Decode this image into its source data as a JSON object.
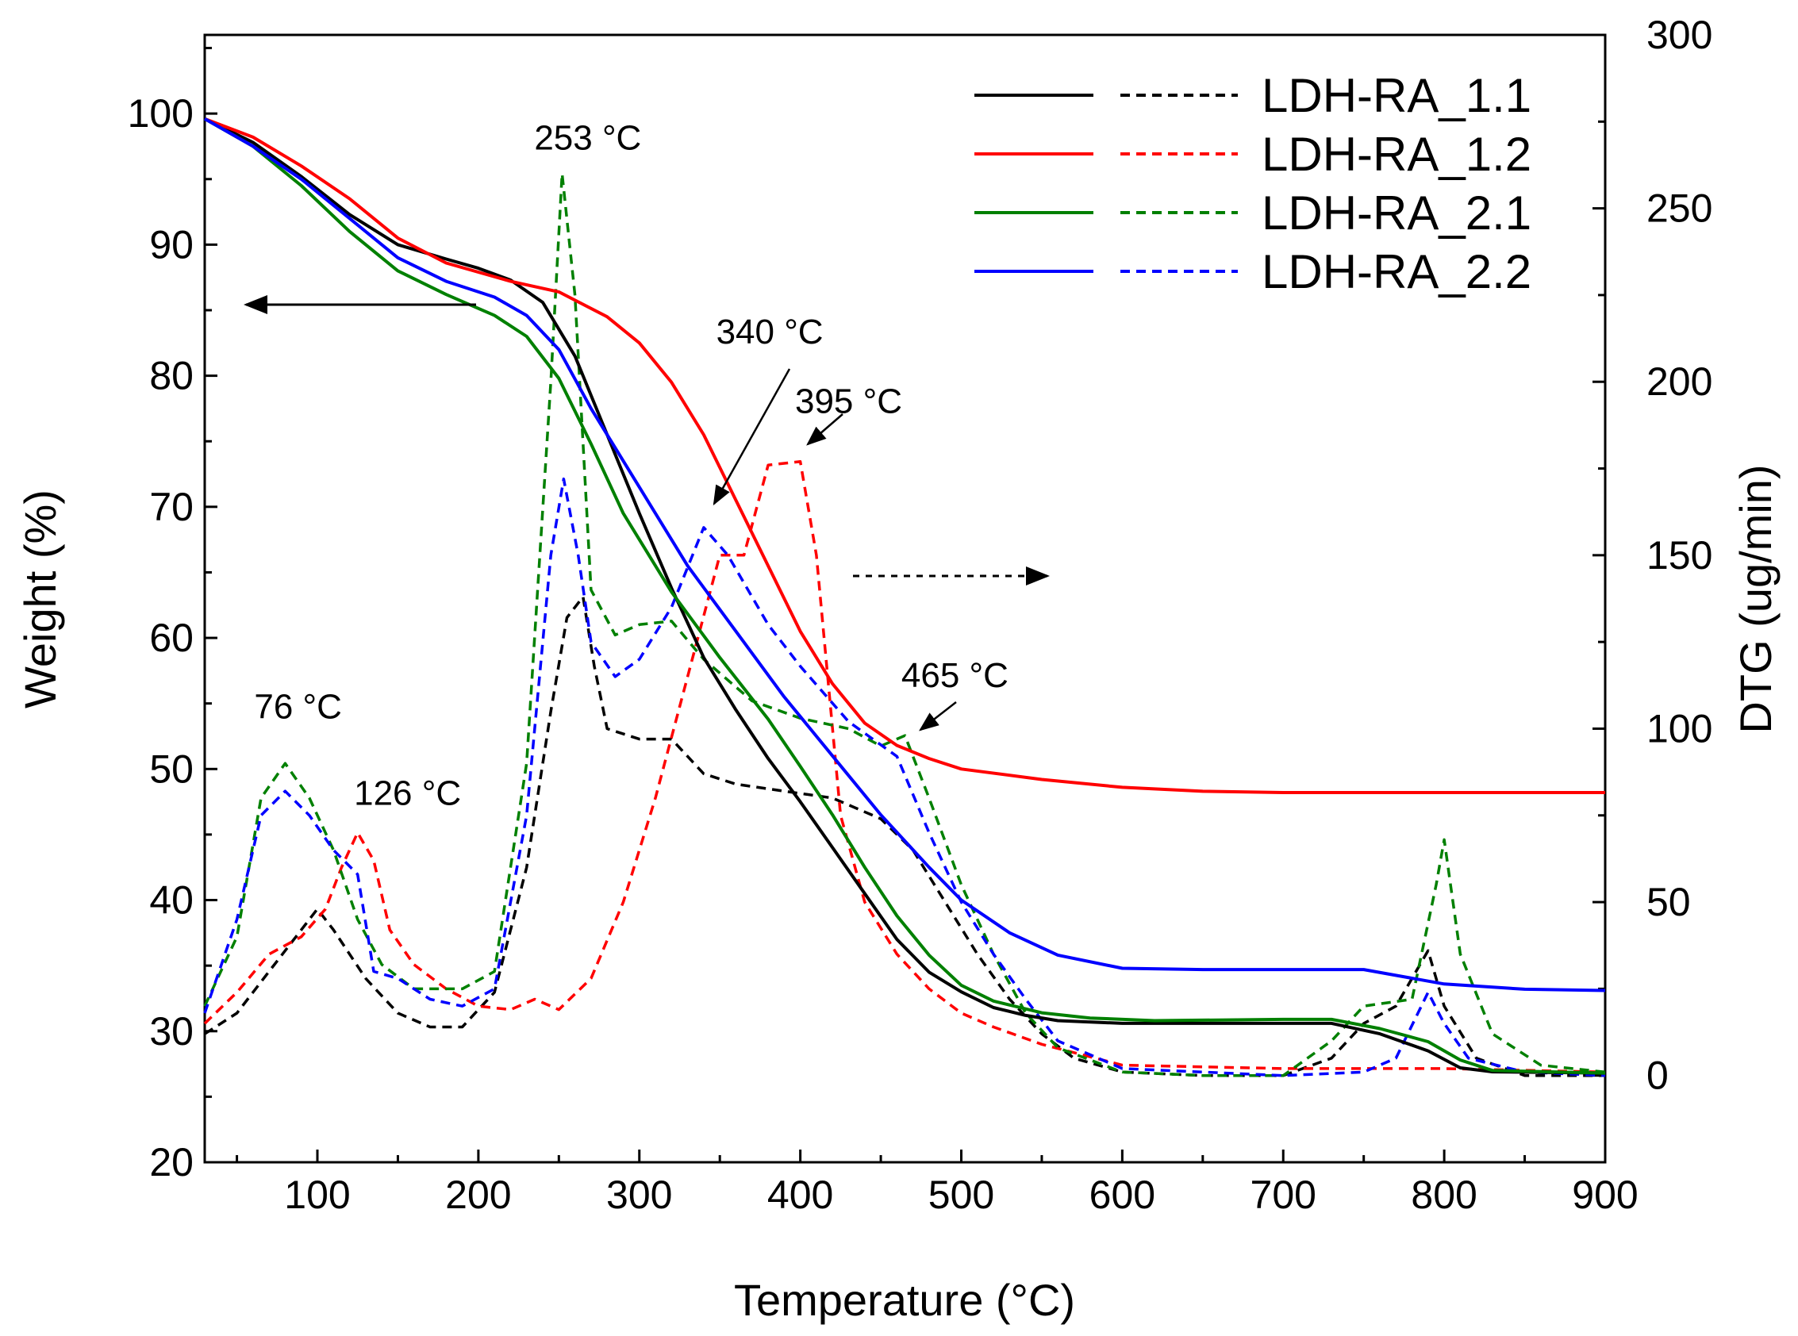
{
  "chart_data": {
    "type": "line",
    "xlabel": "Temperature (°C)",
    "ylabel_left": "Weight (%)",
    "ylabel_right": "DTG (ug/min)",
    "xlim": [
      30,
      900
    ],
    "ylim_left": [
      20,
      106
    ],
    "ylim_right": [
      -25,
      300
    ],
    "x_ticks": [
      100,
      200,
      300,
      400,
      500,
      600,
      700,
      800,
      900
    ],
    "y_left_ticks": [
      20,
      30,
      40,
      50,
      60,
      70,
      80,
      90,
      100
    ],
    "y_right_ticks": [
      0,
      50,
      100,
      150,
      200,
      250,
      300
    ],
    "grid": false,
    "legend_position": "top-right",
    "series": [
      {
        "name": "LDH-RA_1.1",
        "color": "#000000",
        "weight": [
          [
            30,
            99.6
          ],
          [
            60,
            97.8
          ],
          [
            90,
            95.2
          ],
          [
            120,
            92.3
          ],
          [
            150,
            90.0
          ],
          [
            180,
            88.9
          ],
          [
            200,
            88.2
          ],
          [
            220,
            87.3
          ],
          [
            240,
            85.6
          ],
          [
            260,
            81.5
          ],
          [
            280,
            75.5
          ],
          [
            300,
            69.5
          ],
          [
            320,
            63.8
          ],
          [
            340,
            58.5
          ],
          [
            360,
            54.5
          ],
          [
            380,
            50.8
          ],
          [
            400,
            47.5
          ],
          [
            420,
            44.0
          ],
          [
            440,
            40.5
          ],
          [
            460,
            37.0
          ],
          [
            480,
            34.5
          ],
          [
            500,
            33.0
          ],
          [
            520,
            31.8
          ],
          [
            540,
            31.2
          ],
          [
            560,
            30.8
          ],
          [
            600,
            30.6
          ],
          [
            650,
            30.6
          ],
          [
            700,
            30.6
          ],
          [
            730,
            30.6
          ],
          [
            760,
            29.8
          ],
          [
            790,
            28.5
          ],
          [
            810,
            27.2
          ],
          [
            830,
            26.9
          ],
          [
            900,
            26.8
          ]
        ],
        "dtg": [
          [
            30,
            12
          ],
          [
            50,
            18
          ],
          [
            70,
            30
          ],
          [
            90,
            42
          ],
          [
            100,
            48
          ],
          [
            110,
            42
          ],
          [
            130,
            28
          ],
          [
            150,
            18
          ],
          [
            170,
            14
          ],
          [
            190,
            14
          ],
          [
            210,
            24
          ],
          [
            230,
            60
          ],
          [
            245,
            105
          ],
          [
            255,
            132
          ],
          [
            265,
            138
          ],
          [
            272,
            118
          ],
          [
            280,
            100
          ],
          [
            300,
            97
          ],
          [
            320,
            97
          ],
          [
            340,
            87
          ],
          [
            360,
            84
          ],
          [
            390,
            82
          ],
          [
            420,
            80
          ],
          [
            450,
            74
          ],
          [
            470,
            65
          ],
          [
            490,
            50
          ],
          [
            510,
            35
          ],
          [
            530,
            22
          ],
          [
            550,
            12
          ],
          [
            570,
            5
          ],
          [
            600,
            1
          ],
          [
            650,
            0
          ],
          [
            700,
            0
          ],
          [
            730,
            5
          ],
          [
            750,
            15
          ],
          [
            770,
            20
          ],
          [
            790,
            36
          ],
          [
            800,
            20
          ],
          [
            820,
            5
          ],
          [
            850,
            0
          ],
          [
            900,
            0
          ]
        ]
      },
      {
        "name": "LDH-RA_1.2",
        "color": "#ff0000",
        "weight": [
          [
            30,
            99.6
          ],
          [
            60,
            98.2
          ],
          [
            90,
            96.0
          ],
          [
            120,
            93.5
          ],
          [
            150,
            90.5
          ],
          [
            180,
            88.6
          ],
          [
            220,
            87.2
          ],
          [
            250,
            86.4
          ],
          [
            280,
            84.5
          ],
          [
            300,
            82.5
          ],
          [
            320,
            79.5
          ],
          [
            340,
            75.5
          ],
          [
            360,
            70.5
          ],
          [
            380,
            65.5
          ],
          [
            400,
            60.5
          ],
          [
            420,
            56.5
          ],
          [
            440,
            53.5
          ],
          [
            460,
            51.8
          ],
          [
            480,
            50.8
          ],
          [
            500,
            50.0
          ],
          [
            550,
            49.2
          ],
          [
            600,
            48.6
          ],
          [
            650,
            48.3
          ],
          [
            700,
            48.2
          ],
          [
            800,
            48.2
          ],
          [
            900,
            48.2
          ]
        ],
        "dtg": [
          [
            30,
            15
          ],
          [
            50,
            24
          ],
          [
            70,
            35
          ],
          [
            90,
            40
          ],
          [
            105,
            48
          ],
          [
            115,
            60
          ],
          [
            125,
            70
          ],
          [
            135,
            62
          ],
          [
            145,
            42
          ],
          [
            160,
            32
          ],
          [
            180,
            25
          ],
          [
            200,
            20
          ],
          [
            220,
            19
          ],
          [
            235,
            22
          ],
          [
            250,
            19
          ],
          [
            270,
            28
          ],
          [
            290,
            50
          ],
          [
            310,
            80
          ],
          [
            330,
            115
          ],
          [
            350,
            150
          ],
          [
            365,
            150
          ],
          [
            380,
            176
          ],
          [
            400,
            177
          ],
          [
            410,
            150
          ],
          [
            425,
            75
          ],
          [
            440,
            50
          ],
          [
            460,
            35
          ],
          [
            480,
            25
          ],
          [
            500,
            18
          ],
          [
            520,
            14
          ],
          [
            550,
            9
          ],
          [
            600,
            3
          ],
          [
            700,
            2
          ],
          [
            800,
            2
          ],
          [
            900,
            1
          ]
        ]
      },
      {
        "name": "LDH-RA_2.1",
        "color": "#008000",
        "weight": [
          [
            30,
            99.6
          ],
          [
            60,
            97.5
          ],
          [
            90,
            94.5
          ],
          [
            120,
            91.0
          ],
          [
            150,
            88.0
          ],
          [
            180,
            86.2
          ],
          [
            210,
            84.6
          ],
          [
            230,
            83.0
          ],
          [
            250,
            79.8
          ],
          [
            270,
            74.8
          ],
          [
            290,
            69.5
          ],
          [
            320,
            63.5
          ],
          [
            350,
            58.5
          ],
          [
            380,
            53.8
          ],
          [
            400,
            50.2
          ],
          [
            420,
            46.5
          ],
          [
            440,
            42.5
          ],
          [
            460,
            38.8
          ],
          [
            480,
            35.8
          ],
          [
            500,
            33.5
          ],
          [
            520,
            32.3
          ],
          [
            550,
            31.4
          ],
          [
            580,
            31.0
          ],
          [
            620,
            30.8
          ],
          [
            700,
            30.9
          ],
          [
            730,
            30.9
          ],
          [
            760,
            30.2
          ],
          [
            790,
            29.2
          ],
          [
            810,
            27.8
          ],
          [
            830,
            27.0
          ],
          [
            900,
            26.8
          ]
        ],
        "dtg": [
          [
            30,
            20
          ],
          [
            50,
            40
          ],
          [
            65,
            80
          ],
          [
            80,
            90
          ],
          [
            95,
            80
          ],
          [
            110,
            65
          ],
          [
            125,
            45
          ],
          [
            140,
            32
          ],
          [
            160,
            25
          ],
          [
            190,
            25
          ],
          [
            210,
            30
          ],
          [
            230,
            90
          ],
          [
            245,
            200
          ],
          [
            252,
            260
          ],
          [
            260,
            225
          ],
          [
            270,
            140
          ],
          [
            285,
            127
          ],
          [
            300,
            130
          ],
          [
            320,
            131
          ],
          [
            340,
            120
          ],
          [
            370,
            108
          ],
          [
            400,
            103
          ],
          [
            430,
            100
          ],
          [
            450,
            95
          ],
          [
            465,
            98
          ],
          [
            480,
            80
          ],
          [
            500,
            55
          ],
          [
            520,
            35
          ],
          [
            540,
            18
          ],
          [
            560,
            8
          ],
          [
            600,
            1
          ],
          [
            650,
            0
          ],
          [
            700,
            0
          ],
          [
            730,
            10
          ],
          [
            750,
            20
          ],
          [
            780,
            22
          ],
          [
            795,
            55
          ],
          [
            800,
            68
          ],
          [
            810,
            35
          ],
          [
            830,
            12
          ],
          [
            860,
            3
          ],
          [
            900,
            1
          ]
        ]
      },
      {
        "name": "LDH-RA_2.2",
        "color": "#0000ff",
        "weight": [
          [
            30,
            99.6
          ],
          [
            60,
            97.5
          ],
          [
            90,
            95.0
          ],
          [
            120,
            92.0
          ],
          [
            150,
            89.0
          ],
          [
            180,
            87.2
          ],
          [
            210,
            86.0
          ],
          [
            230,
            84.6
          ],
          [
            250,
            82.0
          ],
          [
            270,
            77.5
          ],
          [
            300,
            71.5
          ],
          [
            330,
            65.5
          ],
          [
            360,
            60.5
          ],
          [
            390,
            55.5
          ],
          [
            420,
            51.0
          ],
          [
            450,
            46.5
          ],
          [
            480,
            42.5
          ],
          [
            500,
            40.0
          ],
          [
            530,
            37.5
          ],
          [
            560,
            35.8
          ],
          [
            600,
            34.8
          ],
          [
            650,
            34.7
          ],
          [
            700,
            34.7
          ],
          [
            750,
            34.7
          ],
          [
            800,
            33.6
          ],
          [
            850,
            33.2
          ],
          [
            900,
            33.1
          ]
        ],
        "dtg": [
          [
            30,
            18
          ],
          [
            50,
            45
          ],
          [
            65,
            75
          ],
          [
            80,
            82
          ],
          [
            95,
            75
          ],
          [
            110,
            65
          ],
          [
            125,
            58
          ],
          [
            135,
            30
          ],
          [
            150,
            28
          ],
          [
            170,
            22
          ],
          [
            190,
            20
          ],
          [
            210,
            25
          ],
          [
            230,
            75
          ],
          [
            245,
            150
          ],
          [
            253,
            172
          ],
          [
            262,
            150
          ],
          [
            270,
            125
          ],
          [
            285,
            115
          ],
          [
            300,
            120
          ],
          [
            320,
            135
          ],
          [
            340,
            158
          ],
          [
            355,
            150
          ],
          [
            380,
            130
          ],
          [
            400,
            118
          ],
          [
            430,
            102
          ],
          [
            460,
            92
          ],
          [
            480,
            70
          ],
          [
            500,
            50
          ],
          [
            520,
            35
          ],
          [
            540,
            22
          ],
          [
            560,
            10
          ],
          [
            600,
            2
          ],
          [
            700,
            0
          ],
          [
            750,
            1
          ],
          [
            770,
            5
          ],
          [
            790,
            24
          ],
          [
            800,
            15
          ],
          [
            815,
            5
          ],
          [
            850,
            1
          ],
          [
            900,
            0
          ]
        ]
      }
    ],
    "annotations": [
      {
        "text": "76 °C",
        "x": 88,
        "y_right": 103
      },
      {
        "text": "126 °C",
        "x": 156,
        "y_right": 78
      },
      {
        "text": "253 °C",
        "x": 268,
        "y_right": 267
      },
      {
        "text": "340 °C",
        "x": 381,
        "y_right": 211
      },
      {
        "text": "395 °C",
        "x": 430,
        "y_right": 191
      },
      {
        "text": "465 °C",
        "x": 496,
        "y_right": 112
      }
    ]
  }
}
